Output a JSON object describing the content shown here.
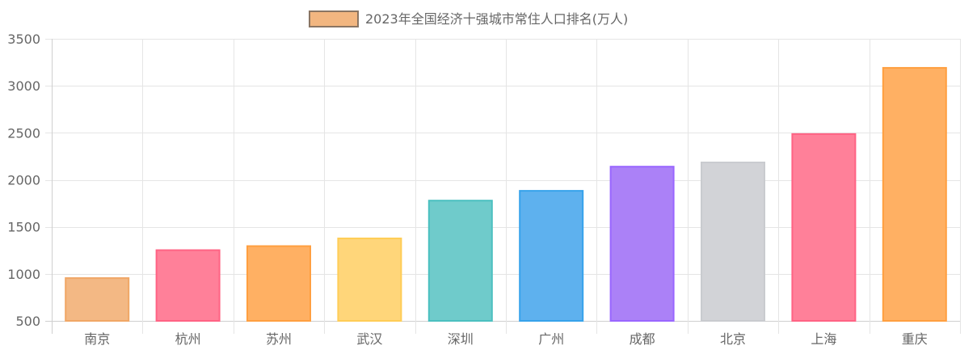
{
  "chart_data": {
    "type": "bar",
    "title": "",
    "xlabel": "",
    "ylabel": "",
    "legend": {
      "position": "top",
      "label": "2023年全国经济十强城市常住人口排名(万人)",
      "swatch_fill": "#f2b680",
      "swatch_stroke": "#8a7563"
    },
    "categories": [
      "南京",
      "杭州",
      "苏州",
      "武汉",
      "深圳",
      "广州",
      "成都",
      "北京",
      "上海",
      "重庆"
    ],
    "series": [
      {
        "name": "2023年全国经济十强城市常住人口排名(万人)",
        "values": [
          955,
          1252,
          1295,
          1377,
          1779,
          1883,
          2140,
          2185,
          2487,
          3191
        ]
      }
    ],
    "ylim": [
      500,
      3500
    ],
    "yticks": [
      500,
      1000,
      1500,
      2000,
      2500,
      3000,
      3500
    ],
    "grid": true,
    "colors": {
      "fills": [
        "#f3b884",
        "#ff8099",
        "#ffb063",
        "#ffd67a",
        "#6fcbcb",
        "#5eb1ee",
        "#ab81f7",
        "#d2d3d7",
        "#ff8099",
        "#ffb063"
      ],
      "strokes": [
        "#f0a766",
        "#ff6384",
        "#ff9f40",
        "#ffcd56",
        "#4bc0c0",
        "#36a2eb",
        "#9966ff",
        "#c9cbcf",
        "#ff6384",
        "#ff9f40"
      ],
      "grid": "#e5e5e5",
      "axis_text": "#666666"
    }
  }
}
